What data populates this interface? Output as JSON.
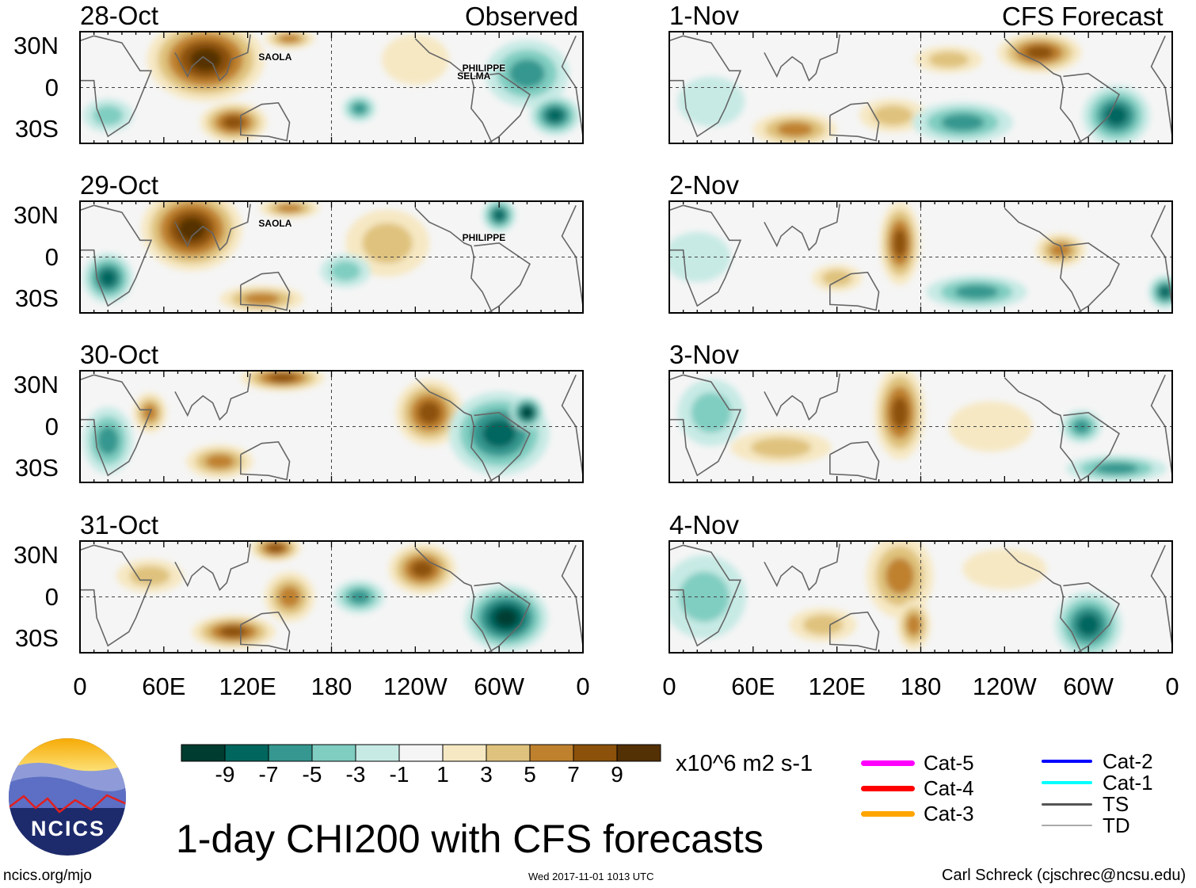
{
  "figure_title": "1-day CHI200 with CFS forecasts",
  "units": "x10^6 m2 s-1",
  "columns": {
    "left": "Observed",
    "right": "CFS Forecast"
  },
  "panels": [
    {
      "date": "28-Oct",
      "column": "left",
      "storms": [
        "SAOLA",
        "PHILIPPE",
        "SELMA"
      ]
    },
    {
      "date": "29-Oct",
      "column": "left",
      "storms": [
        "SAOLA",
        "PHILIPPE"
      ]
    },
    {
      "date": "30-Oct",
      "column": "left",
      "storms": []
    },
    {
      "date": "31-Oct",
      "column": "left",
      "storms": []
    },
    {
      "date": "1-Nov",
      "column": "right",
      "storms": []
    },
    {
      "date": "2-Nov",
      "column": "right",
      "storms": []
    },
    {
      "date": "3-Nov",
      "column": "right",
      "storms": []
    },
    {
      "date": "4-Nov",
      "column": "right",
      "storms": []
    }
  ],
  "lat_labels": [
    "30N",
    "0",
    "30S"
  ],
  "lon_labels": [
    "0",
    "60E",
    "120E",
    "180",
    "120W",
    "60W",
    "0"
  ],
  "colorbar": {
    "labels": [
      "-9",
      "-7",
      "-5",
      "-3",
      "-1",
      "1",
      "3",
      "5",
      "7",
      "9"
    ],
    "colors": [
      "#003c30",
      "#01665e",
      "#35978f",
      "#80cdc1",
      "#c7eae5",
      "#f5f5f5",
      "#f6e8c3",
      "#dfc27d",
      "#bf812d",
      "#8c510a",
      "#543005"
    ]
  },
  "legend": [
    {
      "label": "Cat-5",
      "color": "#ff00ff"
    },
    {
      "label": "Cat-4",
      "color": "#ff0000"
    },
    {
      "label": "Cat-3",
      "color": "#ffa500"
    },
    {
      "label": "Cat-2",
      "color": "#0000ff"
    },
    {
      "label": "Cat-1",
      "color": "#00ffff"
    },
    {
      "label": "TS",
      "color": "#555555"
    },
    {
      "label": "TD",
      "color": "#aaaaaa"
    }
  ],
  "logo_text": "NCICS",
  "footer": {
    "website": "ncics.org/mjo",
    "timestamp": "Wed 2017-11-01 1013 UTC",
    "credit": "Carl Schreck (cjschrec@ncsu.edu)"
  }
}
